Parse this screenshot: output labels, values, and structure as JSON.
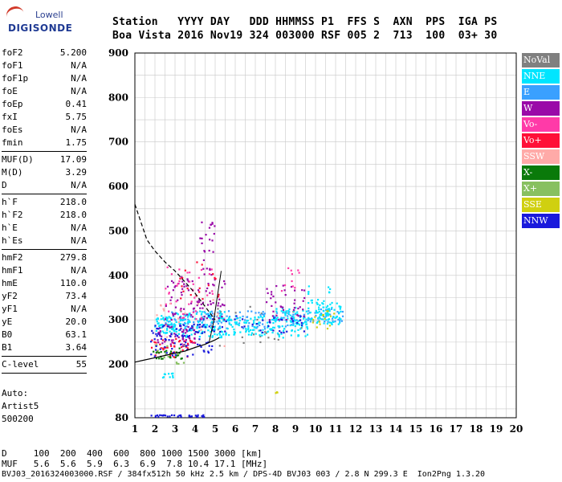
{
  "logo": {
    "line1": "Lowell",
    "line2": "DIGISONDE"
  },
  "header": {
    "line1": "Station   YYYY DAY   DDD HHMMSS P1  FFS S  AXN  PPS  IGA PS",
    "line2": "Boa Vista 2016 Nov19 324 003000 RSF 005 2  713  100  03+ 30"
  },
  "params": [
    {
      "label": "foF2",
      "value": "5.200"
    },
    {
      "label": "foF1",
      "value": "N/A"
    },
    {
      "label": "foF1p",
      "value": "N/A"
    },
    {
      "label": "foE",
      "value": "N/A"
    },
    {
      "label": "foEp",
      "value": "0.41"
    },
    {
      "label": "fxI",
      "value": "5.75"
    },
    {
      "label": "foEs",
      "value": "N/A"
    },
    {
      "label": "fmin",
      "value": "1.75"
    },
    {
      "sep": true
    },
    {
      "label": "MUF(D)",
      "value": "17.09"
    },
    {
      "label": "M(D)",
      "value": "3.29"
    },
    {
      "label": "D",
      "value": "N/A"
    },
    {
      "sep": true
    },
    {
      "label": "h`F",
      "value": "218.0"
    },
    {
      "label": "h`F2",
      "value": "218.0"
    },
    {
      "label": "h`E",
      "value": "N/A"
    },
    {
      "label": "h`Es",
      "value": "N/A"
    },
    {
      "sep": true
    },
    {
      "label": "hmF2",
      "value": "279.8"
    },
    {
      "label": "hmF1",
      "value": "N/A"
    },
    {
      "label": "hmE",
      "value": "110.0"
    },
    {
      "label": "yF2",
      "value": "73.4"
    },
    {
      "label": "yF1",
      "value": "N/A"
    },
    {
      "label": "yE",
      "value": "20.0"
    },
    {
      "label": "B0",
      "value": "63.1"
    },
    {
      "label": "B1",
      "value": "3.64"
    },
    {
      "sep": true
    },
    {
      "label": "C-level",
      "value": "55"
    },
    {
      "sep": true
    }
  ],
  "auto": {
    "line1": "Auto:",
    "line2": "Artist5",
    "line3": "500200"
  },
  "legend": [
    {
      "label": "NoVal",
      "color": "#808080"
    },
    {
      "label": "NNE",
      "color": "#00e5ff"
    },
    {
      "label": "E",
      "color": "#3aa0ff"
    },
    {
      "label": "W",
      "color": "#9a0aa8"
    },
    {
      "label": "Vo-",
      "color": "#ff3aa8"
    },
    {
      "label": "Vo+",
      "color": "#ff1038"
    },
    {
      "label": "SSW",
      "color": "#ffaaa8"
    },
    {
      "label": "X-",
      "color": "#0a7a0a"
    },
    {
      "label": "X+",
      "color": "#88c060"
    },
    {
      "label": "SSE",
      "color": "#d0d010"
    },
    {
      "label": "NNW",
      "color": "#1a1adc"
    }
  ],
  "footer": {
    "dline": "D     100  200  400  600  800 1000 1500 3000 [km]",
    "mline": "MUF   5.6  5.6  5.9  6.3  6.9  7.8 10.4 17.1 [MHz]",
    "info": "BVJ03_2016324003000.RSF / 384fx512h 50 kHz 2.5 km / DPS-4D BVJ03 003 / 2.8 N 299.3 E  Ion2Png 1.3.20"
  },
  "chart_data": {
    "type": "scatter",
    "title": "",
    "xlabel": "",
    "ylabel": "",
    "xlim": [
      1,
      20
    ],
    "ylim": [
      80,
      900
    ],
    "x_ticks": [
      1,
      2,
      3,
      4,
      5,
      6,
      7,
      8,
      9,
      10,
      11,
      12,
      13,
      14,
      15,
      16,
      17,
      18,
      19,
      20
    ],
    "y_ticks": [
      80,
      200,
      300,
      400,
      500,
      600,
      700,
      800,
      900
    ],
    "grid": true,
    "series": [
      {
        "name": "NNE",
        "clusters": [
          {
            "x": [
              2.0,
              3.0
            ],
            "y": [
              270,
              310
            ],
            "n": 60
          },
          {
            "x": [
              3.0,
              5.5
            ],
            "y": [
              260,
              320
            ],
            "n": 110
          },
          {
            "x": [
              5.5,
              8.0
            ],
            "y": [
              265,
              310
            ],
            "n": 90
          },
          {
            "x": [
              8.0,
              9.7
            ],
            "y": [
              260,
              330
            ],
            "n": 80
          },
          {
            "x": [
              10.0,
              11.3
            ],
            "y": [
              290,
              340
            ],
            "n": 60
          },
          {
            "x": [
              9.6,
              10.8
            ],
            "y": [
              300,
              380
            ],
            "n": 30
          },
          {
            "x": [
              2.3,
              3.0
            ],
            "y": [
              170,
              180
            ],
            "n": 10
          }
        ]
      },
      {
        "name": "E",
        "clusters": [
          {
            "x": [
              2.5,
              6.5
            ],
            "y": [
              280,
              320
            ],
            "n": 80
          },
          {
            "x": [
              6.5,
              9.5
            ],
            "y": [
              280,
              320
            ],
            "n": 60
          },
          {
            "x": [
              9.6,
              11.5
            ],
            "y": [
              295,
              325
            ],
            "n": 40
          }
        ]
      },
      {
        "name": "W",
        "clusters": [
          {
            "x": [
              2.0,
              4.0
            ],
            "y": [
              240,
              290
            ],
            "n": 60
          },
          {
            "x": [
              2.5,
              5.5
            ],
            "y": [
              300,
              400
            ],
            "n": 80
          },
          {
            "x": [
              4.2,
              5.0
            ],
            "y": [
              400,
              520
            ],
            "n": 25
          },
          {
            "x": [
              7.5,
              9.5
            ],
            "y": [
              300,
              380
            ],
            "n": 40
          }
        ]
      },
      {
        "name": "Vo-",
        "clusters": [
          {
            "x": [
              2.5,
              5.0
            ],
            "y": [
              300,
              420
            ],
            "n": 40
          },
          {
            "x": [
              8.3,
              9.2
            ],
            "y": [
              360,
              420
            ],
            "n": 10
          }
        ]
      },
      {
        "name": "Vo+",
        "clusters": [
          {
            "x": [
              1.8,
              4.0
            ],
            "y": [
              215,
              260
            ],
            "n": 40
          },
          {
            "x": [
              3.2,
              5.2
            ],
            "y": [
              330,
              430
            ],
            "n": 20
          }
        ]
      },
      {
        "name": "SSW",
        "clusters": [
          {
            "x": [
              2.0,
              5.5
            ],
            "y": [
              230,
              350
            ],
            "n": 20
          }
        ]
      },
      {
        "name": "X-",
        "clusters": [
          {
            "x": [
              1.9,
              3.5
            ],
            "y": [
              210,
              240
            ],
            "n": 25
          }
        ]
      },
      {
        "name": "X+",
        "clusters": [
          {
            "x": [
              1.9,
              3.5
            ],
            "y": [
              200,
              250
            ],
            "n": 15
          }
        ]
      },
      {
        "name": "SSE",
        "clusters": [
          {
            "x": [
              8.0,
              8.1
            ],
            "y": [
              125,
              140
            ],
            "n": 3
          },
          {
            "x": [
              9.8,
              11.3
            ],
            "y": [
              280,
              320
            ],
            "n": 15
          }
        ]
      },
      {
        "name": "NNW",
        "clusters": [
          {
            "x": [
              1.8,
              5.0
            ],
            "y": [
              218,
              290
            ],
            "n": 80
          },
          {
            "x": [
              4.0,
              9.5
            ],
            "y": [
              270,
              310
            ],
            "n": 40
          },
          {
            "x": [
              1.8,
              4.5
            ],
            "y": [
              82,
              86
            ],
            "n": 30
          }
        ]
      },
      {
        "name": "NoVal",
        "clusters": [
          {
            "x": [
              2.0,
              9.5
            ],
            "y": [
              240,
              330
            ],
            "n": 30
          }
        ]
      }
    ],
    "profile_curve": {
      "x": [
        1.0,
        1.5,
        2.0,
        2.5,
        3.0,
        3.5,
        4.0,
        4.5,
        5.0,
        5.2
      ],
      "y": [
        205,
        210,
        215,
        220,
        225,
        230,
        238,
        245,
        255,
        260
      ]
    },
    "trace_line": {
      "x": [
        4.7,
        4.9,
        5.1,
        5.3
      ],
      "y": [
        250,
        290,
        350,
        410
      ]
    },
    "muf_curve": {
      "x": [
        1.0,
        1.3,
        1.6,
        2.0,
        2.5,
        3.0,
        3.5,
        4.0,
        4.5,
        5.0
      ],
      "y": [
        560,
        520,
        480,
        455,
        430,
        410,
        385,
        360,
        330,
        300
      ]
    }
  }
}
